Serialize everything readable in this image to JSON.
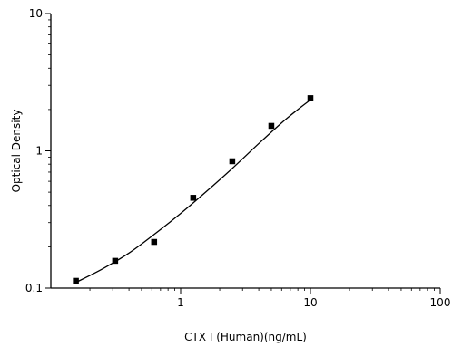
{
  "chart_data": {
    "type": "scatter",
    "title": "",
    "xlabel": "CTX I  (Human)(ng/mL)",
    "ylabel": "Optical Density",
    "x_scale": "log",
    "y_scale": "log",
    "xlim": [
      0.1,
      100
    ],
    "ylim": [
      0.1,
      10
    ],
    "x_ticks": [
      "1",
      "10",
      "100"
    ],
    "y_ticks": [
      "0.1",
      "1",
      "10"
    ],
    "grid": false,
    "legend": "none",
    "series": [
      {
        "type": "scatter",
        "marker": "square",
        "points": [
          {
            "x": 0.156,
            "y": 0.113
          },
          {
            "x": 0.313,
            "y": 0.158
          },
          {
            "x": 0.625,
            "y": 0.217
          },
          {
            "x": 1.25,
            "y": 0.455
          },
          {
            "x": 2.5,
            "y": 0.84
          },
          {
            "x": 5,
            "y": 1.52
          },
          {
            "x": 10,
            "y": 2.42
          }
        ]
      },
      {
        "type": "line",
        "style": "smooth fitted curve",
        "points": [
          {
            "x": 0.156,
            "y": 0.11
          },
          {
            "x": 0.25,
            "y": 0.138
          },
          {
            "x": 0.4,
            "y": 0.18
          },
          {
            "x": 0.625,
            "y": 0.246
          },
          {
            "x": 1,
            "y": 0.35
          },
          {
            "x": 1.5,
            "y": 0.485
          },
          {
            "x": 2.5,
            "y": 0.745
          },
          {
            "x": 4,
            "y": 1.13
          },
          {
            "x": 6,
            "y": 1.6
          },
          {
            "x": 8,
            "y": 2.0
          },
          {
            "x": 10,
            "y": 2.35
          }
        ]
      }
    ]
  }
}
